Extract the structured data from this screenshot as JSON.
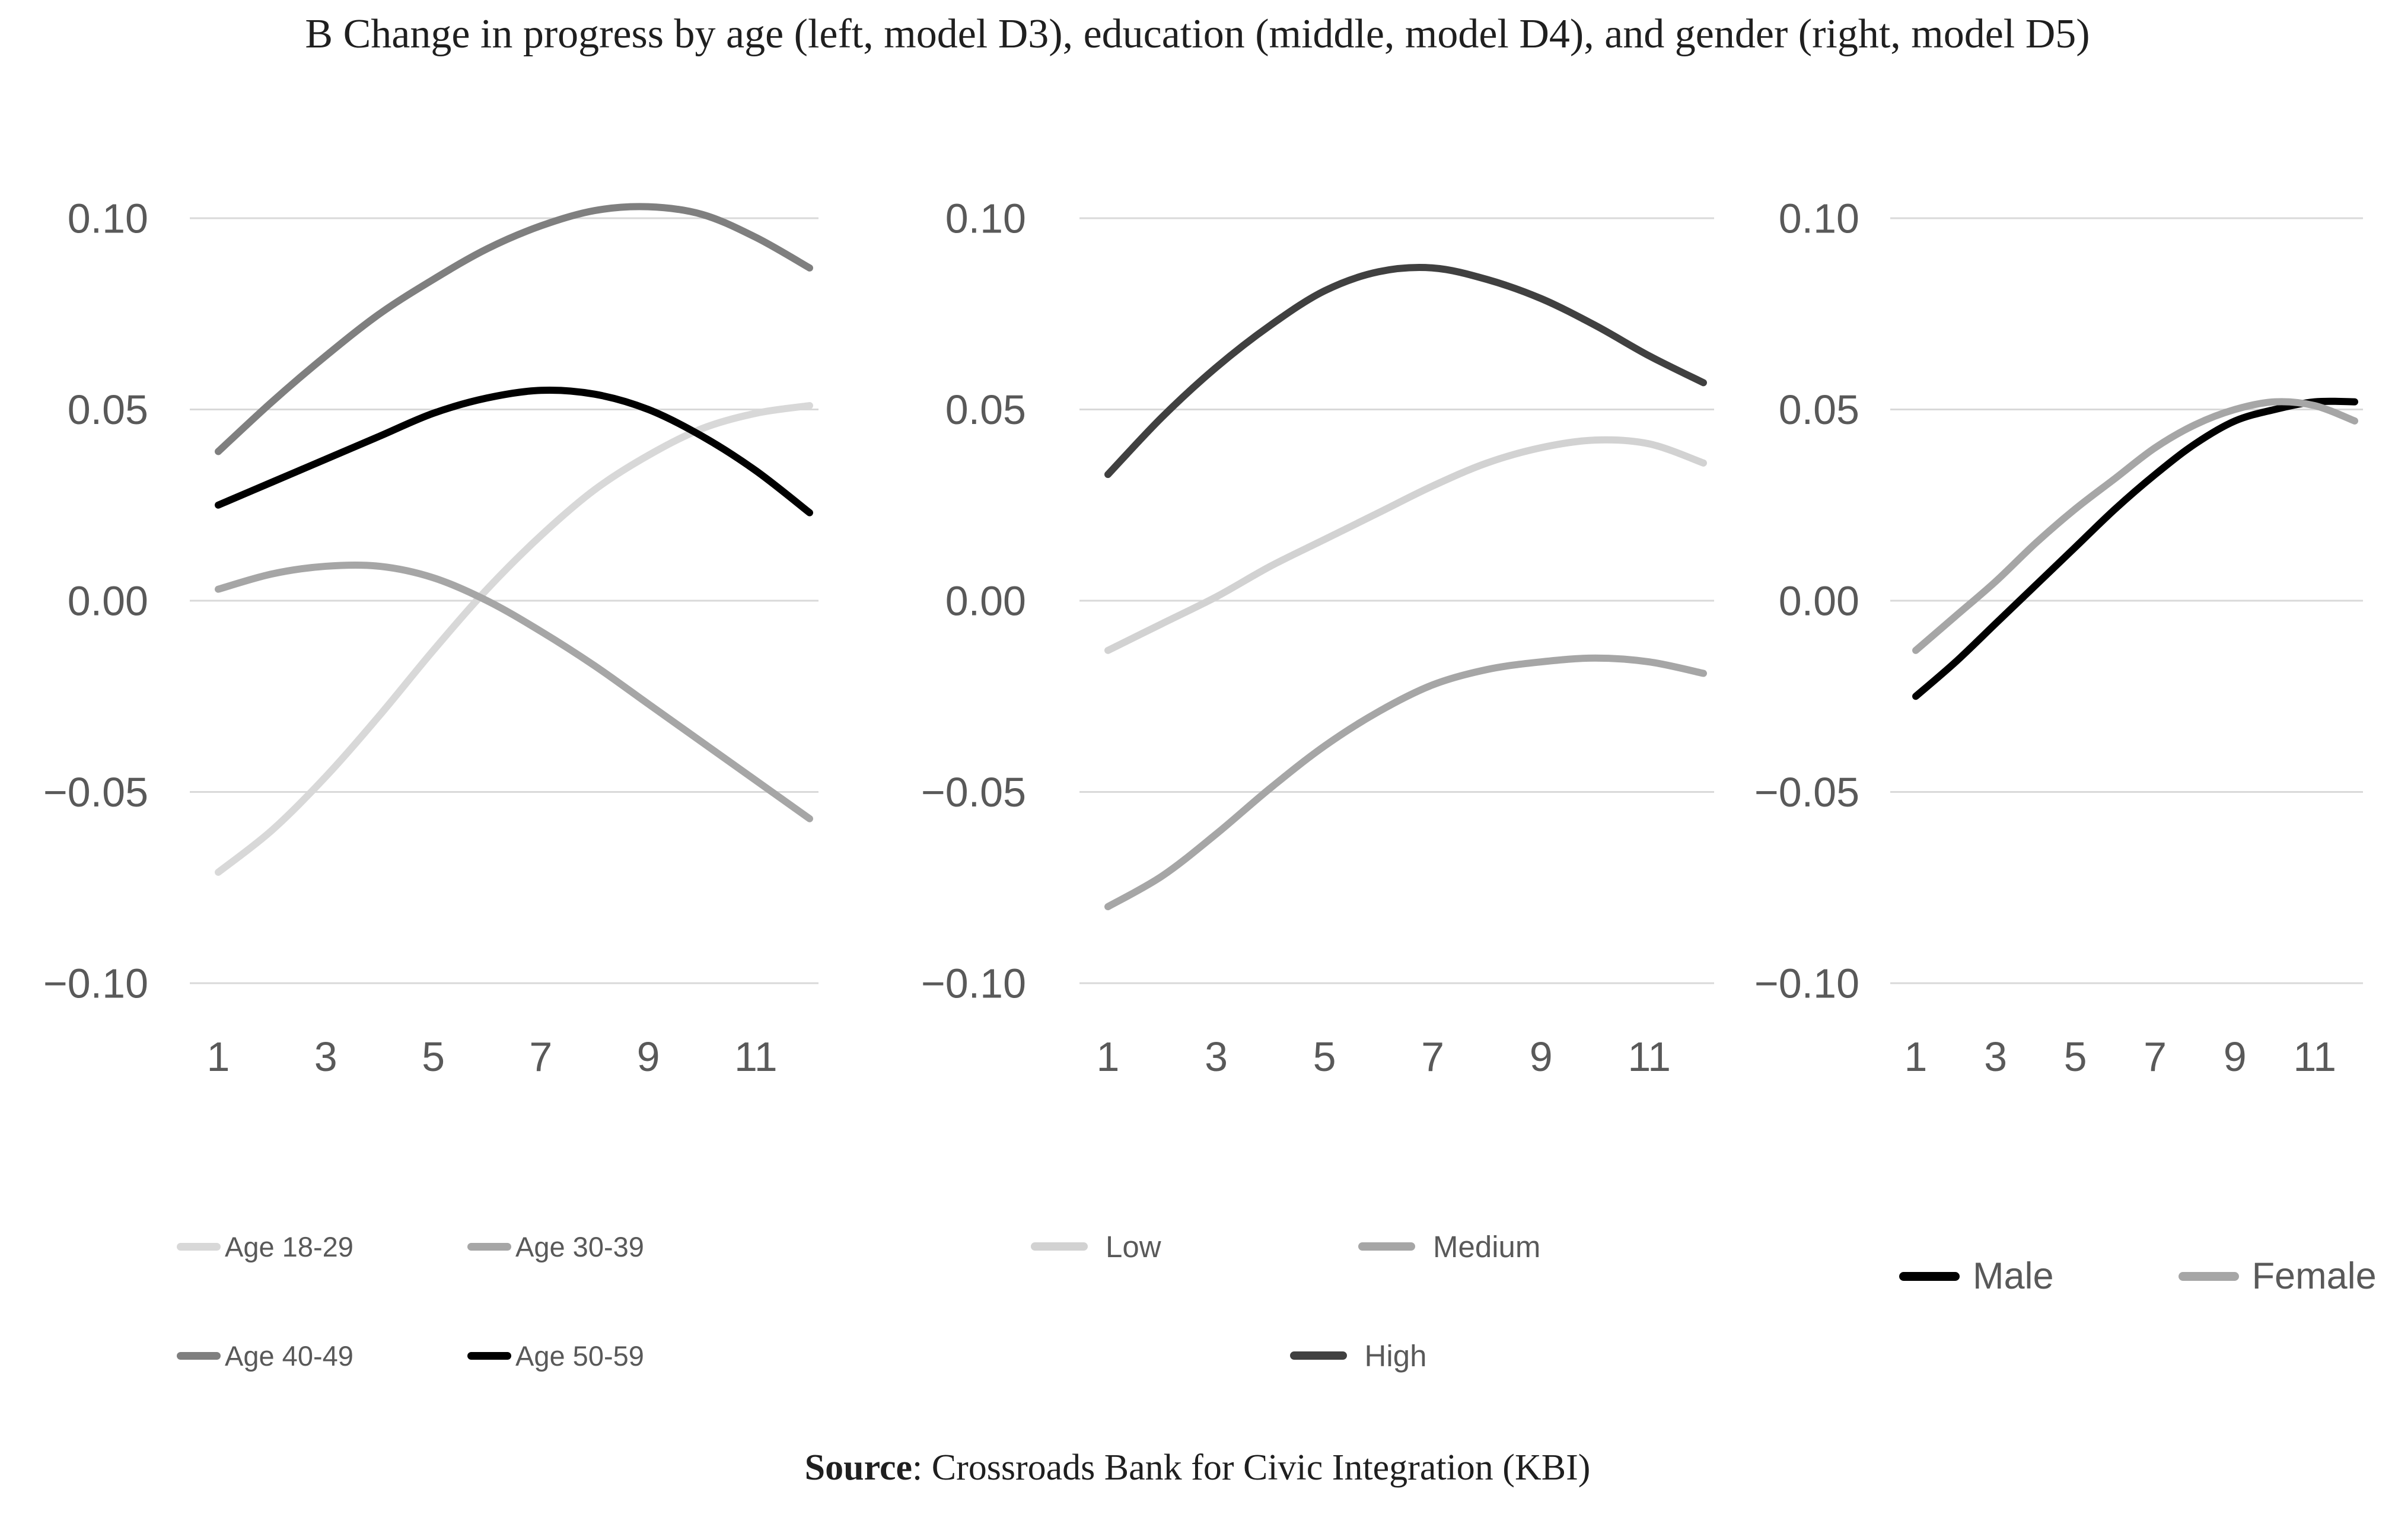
{
  "title": "B Change in progress by age (left, model D3), education (middle, model D4), and gender (right, model D5)",
  "source": {
    "label": "Source",
    "rest": ": Crossroads Bank for Civic Integration (KBI)"
  },
  "colors": {
    "grid": "#d9d9d9",
    "axis_text": "#595959",
    "legend_text": "#595959",
    "background": "#ffffff"
  },
  "axis": {
    "y_range": [
      -0.1,
      0.1
    ],
    "y_tick_values": [
      0.1,
      0.05,
      0.0,
      -0.05,
      -0.1
    ],
    "y_tick_labels": [
      "0.10",
      "0.05",
      "0.00",
      "−0.05",
      "−0.10"
    ],
    "x_tick_values": [
      1,
      3,
      5,
      7,
      9,
      11
    ],
    "x_range": [
      1,
      12
    ],
    "grid": "horizontal-only",
    "legend_position": "bottom"
  },
  "chart_data": [
    {
      "type": "line",
      "name": "Change in progress by age (model D3)",
      "x": [
        1,
        2,
        3,
        4,
        5,
        6,
        7,
        8,
        9,
        10,
        11,
        12
      ],
      "series": [
        {
          "name": "Age 18-29",
          "color": "#d8d8d8",
          "values": [
            -0.071,
            -0.06,
            -0.046,
            -0.03,
            -0.013,
            0.003,
            0.017,
            0.029,
            0.038,
            0.045,
            0.049,
            0.051
          ]
        },
        {
          "name": "Age 30-39",
          "color": "#a6a6a6",
          "values": [
            0.003,
            0.007,
            0.009,
            0.009,
            0.006,
            0.0,
            -0.008,
            -0.017,
            -0.027,
            -0.037,
            -0.047,
            -0.057
          ]
        },
        {
          "name": "Age 40-49",
          "color": "#7f7f7f",
          "values": [
            0.039,
            0.052,
            0.064,
            0.075,
            0.084,
            0.092,
            0.098,
            0.102,
            0.103,
            0.101,
            0.095,
            0.087
          ]
        },
        {
          "name": "Age 50-59",
          "color": "#000000",
          "values": [
            0.025,
            0.031,
            0.037,
            0.043,
            0.049,
            0.053,
            0.055,
            0.054,
            0.05,
            0.043,
            0.034,
            0.023
          ]
        }
      ]
    },
    {
      "type": "line",
      "name": "Change in progress by education (model D4)",
      "x": [
        1,
        2,
        3,
        4,
        5,
        6,
        7,
        8,
        9,
        10,
        11,
        12
      ],
      "series": [
        {
          "name": "Low",
          "color": "#d2d2d2",
          "values": [
            -0.013,
            -0.006,
            0.001,
            0.009,
            0.016,
            0.023,
            0.03,
            0.036,
            0.04,
            0.042,
            0.041,
            0.036
          ]
        },
        {
          "name": "Medium",
          "color": "#a6a6a6",
          "values": [
            -0.08,
            -0.072,
            -0.061,
            -0.049,
            -0.038,
            -0.029,
            -0.022,
            -0.018,
            -0.016,
            -0.015,
            -0.016,
            -0.019
          ]
        },
        {
          "name": "High",
          "color": "#404040",
          "values": [
            0.033,
            0.048,
            0.061,
            0.072,
            0.081,
            0.086,
            0.087,
            0.084,
            0.079,
            0.072,
            0.064,
            0.057
          ]
        }
      ]
    },
    {
      "type": "line",
      "name": "Change in progress by gender (model D5)",
      "x": [
        1,
        2,
        3,
        4,
        5,
        6,
        7,
        8,
        9,
        10,
        11,
        12
      ],
      "series": [
        {
          "name": "Male",
          "color": "#000000",
          "values": [
            -0.025,
            -0.016,
            -0.006,
            0.004,
            0.014,
            0.024,
            0.033,
            0.041,
            0.047,
            0.05,
            0.052,
            0.052
          ]
        },
        {
          "name": "Female",
          "color": "#a6a6a6",
          "values": [
            -0.013,
            -0.004,
            0.005,
            0.015,
            0.024,
            0.032,
            0.04,
            0.046,
            0.05,
            0.052,
            0.051,
            0.047
          ]
        }
      ]
    }
  ]
}
